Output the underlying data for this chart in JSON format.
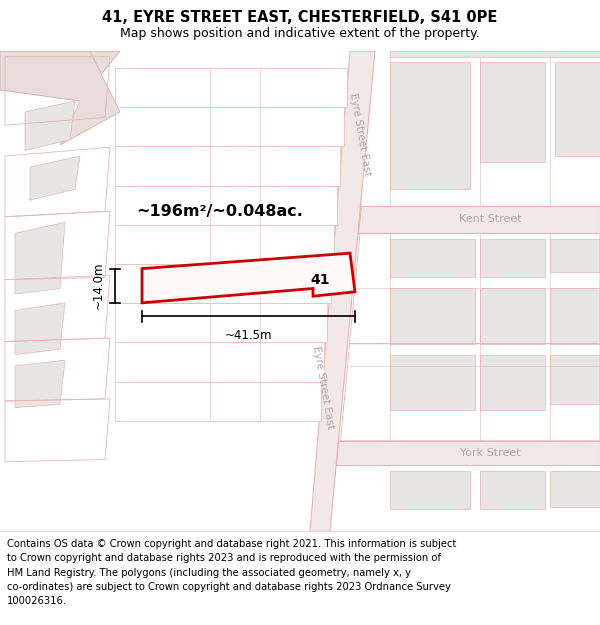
{
  "title_line1": "41, EYRE STREET EAST, CHESTERFIELD, S41 0PE",
  "title_line2": "Map shows position and indicative extent of the property.",
  "area_label": "~196m²/~0.048ac.",
  "width_label": "~41.5m",
  "height_label": "~14.0m",
  "plot_number": "41",
  "footer_text": "Contains OS data © Crown copyright and database right 2021. This information is subject\nto Crown copyright and database rights 2023 and is reproduced with the permission of\nHM Land Registry. The polygons (including the associated geometry, namely x, y\nco-ordinates) are subject to Crown copyright and database rights 2023 Ordnance Survey\n100026316.",
  "map_bg": "#f9f6f5",
  "road_color": "#e8b4b4",
  "road_fill": "#f2e8e8",
  "grey_fill": "#e8e6e4",
  "grey_outline": "#ccbfbf",
  "white_fill": "#ffffff",
  "pink_fill": "#f5eded",
  "pink_outline": "#e8b4b4",
  "plot_color": "#cc0000",
  "beige_fill": "#e8ddd8",
  "title_fontsize": 10.5,
  "subtitle_fontsize": 9,
  "footer_fontsize": 7.2,
  "street_color": "#b0a8a8"
}
